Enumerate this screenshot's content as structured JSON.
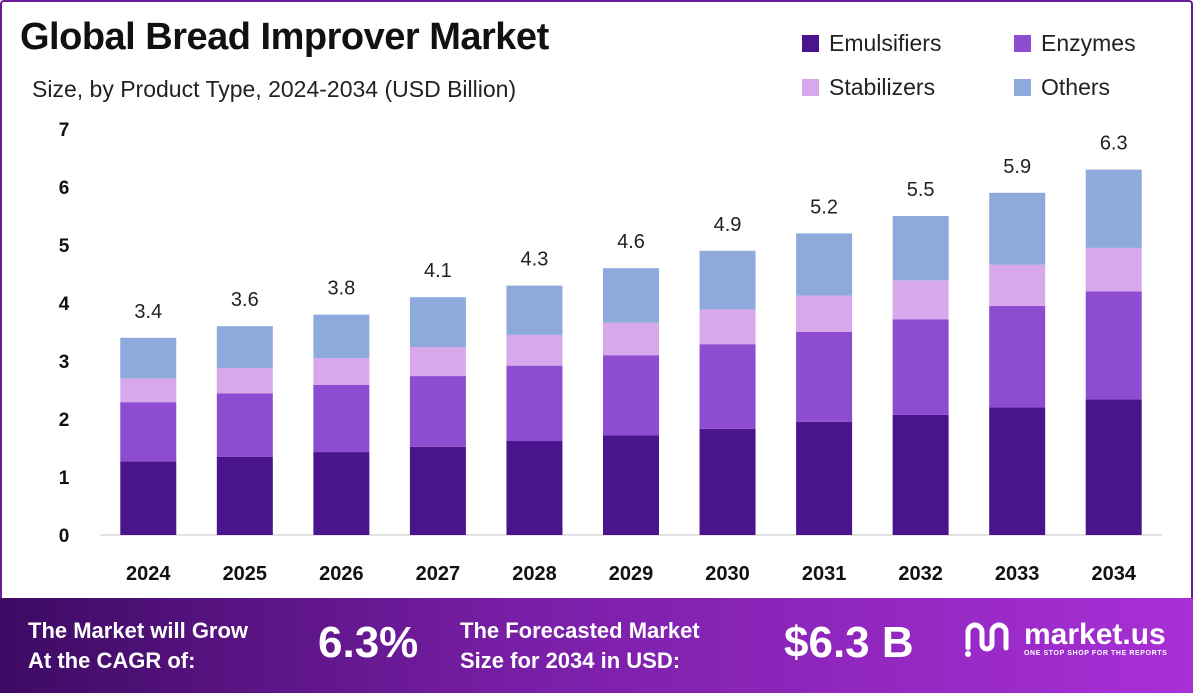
{
  "chart_data": {
    "type": "bar",
    "stacked": true,
    "title": "Global Bread Improver Market",
    "subtitle": "Size, by Product Type, 2024-2034 (USD Billion)",
    "categories": [
      "2024",
      "2025",
      "2026",
      "2027",
      "2028",
      "2029",
      "2030",
      "2031",
      "2032",
      "2033",
      "2034"
    ],
    "totals": [
      "3.4",
      "3.6",
      "3.8",
      "4.1",
      "4.3",
      "4.6",
      "4.9",
      "5.2",
      "5.5",
      "5.9",
      "6.3"
    ],
    "series": [
      {
        "name": "Emulsifiers",
        "color": "#4a148c",
        "values": [
          1.27,
          1.35,
          1.43,
          1.52,
          1.62,
          1.72,
          1.83,
          1.95,
          2.07,
          2.2,
          2.34
        ]
      },
      {
        "name": "Enzymes",
        "color": "#8e4cd1",
        "values": [
          1.02,
          1.09,
          1.16,
          1.22,
          1.3,
          1.38,
          1.46,
          1.55,
          1.65,
          1.75,
          1.86
        ]
      },
      {
        "name": "Stabilizers",
        "color": "#d7a8ec",
        "values": [
          0.41,
          0.44,
          0.46,
          0.5,
          0.53,
          0.56,
          0.6,
          0.63,
          0.67,
          0.71,
          0.75
        ]
      },
      {
        "name": "Others",
        "color": "#8eaadc",
        "values": [
          0.7,
          0.72,
          0.75,
          0.86,
          0.85,
          0.94,
          1.01,
          1.07,
          1.11,
          1.24,
          1.35
        ]
      }
    ],
    "yticks": [
      "0",
      "1",
      "2",
      "3",
      "4",
      "5",
      "6",
      "7"
    ],
    "ylim": [
      0,
      7
    ],
    "grid": false,
    "legend": "top-right"
  },
  "banner": {
    "cagr_label_1": "The Market will Grow",
    "cagr_label_2": "At the CAGR of:",
    "cagr_value": "6.3%",
    "forecast_label_1": "The Forecasted Market",
    "forecast_label_2": "Size for 2034 in USD:",
    "forecast_value": "$6.3 B",
    "brand_name": "market.us",
    "brand_tagline": "ONE STOP SHOP FOR THE REPORTS"
  }
}
